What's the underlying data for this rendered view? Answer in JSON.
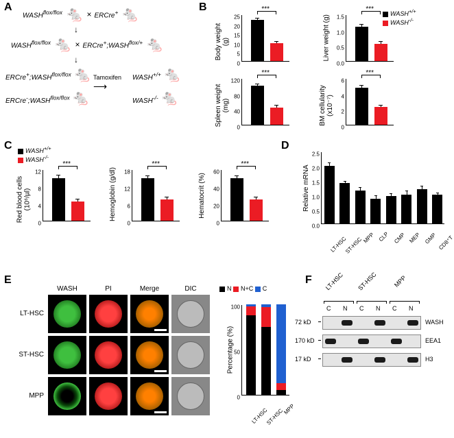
{
  "panel_labels": {
    "A": "A",
    "B": "B",
    "C": "C",
    "D": "D",
    "E": "E",
    "F": "F"
  },
  "panelA": {
    "g1": "WASH",
    "g1s": "flox/flox",
    "g2": "ERCre",
    "g2p": "+",
    "l2": "WASH",
    "l2s": "flox/flox",
    "l3": "ERCre",
    "l3p": "+",
    "l3b": ";WASH",
    "l3bs": "flox/+",
    "l4a": "ERCre",
    "l4ap": "+",
    "l4b": ";WASH",
    "l4bs": "flox/flox",
    "l5a": "ERCre",
    "l5ap": "-",
    "l5b": ";WASH",
    "l5bs": "flox/flox",
    "tam": "Tamoxifen",
    "out1": "WASH",
    "out1s": "+/+",
    "out2": "WASH",
    "out2s": "-/-"
  },
  "legend_b": {
    "wt": "WASH",
    "wts": "+/+",
    "ko": "WASH",
    "kos": "-/-"
  },
  "sig": "***",
  "panelB": {
    "charts": [
      {
        "ylabel": "Body weight\n(g)",
        "ymax": 25,
        "ytick_step": 5,
        "wt": 22,
        "ko": 9.5,
        "wt_err": 0.8,
        "ko_err": 0.7
      },
      {
        "ylabel": "Liver weight (g)",
        "ymax": 1.5,
        "ytick_step": 0.5,
        "wt": 1.1,
        "ko": 0.55,
        "wt_err": 0.08,
        "ko_err": 0.06
      },
      {
        "ylabel": "Spleen weight\n(mg)",
        "ymax": 120,
        "ytick_step": 40,
        "wt": 100,
        "ko": 45,
        "wt_err": 5,
        "ko_err": 4
      },
      {
        "ylabel": "BM cellularity\n(x10⁻⁷)",
        "ymax": 6,
        "ytick_step": 2,
        "wt": 4.8,
        "ko": 2.3,
        "wt_err": 0.25,
        "ko_err": 0.2
      }
    ]
  },
  "panelC": {
    "charts": [
      {
        "ylabel": "Red blood cells\n(10⁶/µl)",
        "ymax": 12,
        "ytick_step": 4,
        "wt": 10,
        "ko": 4.5,
        "wt_err": 0.5,
        "ko_err": 0.4
      },
      {
        "ylabel": "Hemoglobin (g/dl)",
        "ymax": 18,
        "ytick_step": 6,
        "wt": 15,
        "ko": 7.5,
        "wt_err": 0.7,
        "ko_err": 0.6
      },
      {
        "ylabel": "Hematocrit (%)",
        "ymax": 60,
        "ytick_step": 20,
        "wt": 50,
        "ko": 25,
        "wt_err": 2,
        "ko_err": 2
      }
    ]
  },
  "panelD": {
    "ylabel": "Relative mRNA",
    "ymax": 2.5,
    "ytick_step": 0.5,
    "categories": [
      "LT-HSC",
      "ST-HSC",
      "MPP",
      "CLP",
      "CMP",
      "MEP",
      "GMP",
      "CD8⁺T"
    ],
    "values": [
      2.0,
      1.4,
      1.15,
      0.85,
      0.95,
      1.0,
      1.2,
      1.0
    ],
    "errors": [
      0.1,
      0.05,
      0.08,
      0.1,
      0.08,
      0.12,
      0.08,
      0.05
    ]
  },
  "panelE": {
    "cols": [
      "WASH",
      "PI",
      "Merge",
      "DIC"
    ],
    "rows": [
      "LT-HSC",
      "ST-HSC",
      "MPP"
    ],
    "legend": [
      "N",
      "N+C",
      "C"
    ],
    "ylabel": "Percentage (%)",
    "ymax": 100,
    "ytick_step": 50,
    "stacked": {
      "LT-HSC": {
        "N": 88,
        "NC": 10,
        "C": 2
      },
      "ST-HSC": {
        "N": 75,
        "NC": 22,
        "C": 3
      },
      "MPP": {
        "N": 5,
        "NC": 8,
        "C": 87
      }
    }
  },
  "panelF": {
    "groups": [
      "LT-HSC",
      "ST-HSC",
      "MPP"
    ],
    "lanes": [
      "C",
      "N"
    ],
    "rows": [
      {
        "kd": "72 kD",
        "label": "WASH",
        "pattern": [
          0,
          1,
          0,
          1,
          0,
          1
        ]
      },
      {
        "kd": "170 kD",
        "label": "EEA1",
        "pattern": [
          1,
          0,
          1,
          0,
          1,
          0
        ]
      },
      {
        "kd": "17 kD",
        "label": "H3",
        "pattern": [
          0,
          1,
          0,
          1,
          0,
          1
        ]
      }
    ]
  },
  "colors": {
    "black": "#000000",
    "red": "#eb1c24",
    "blue": "#2060d0",
    "green": "#3fbf3f",
    "orange": "#ff8000"
  }
}
